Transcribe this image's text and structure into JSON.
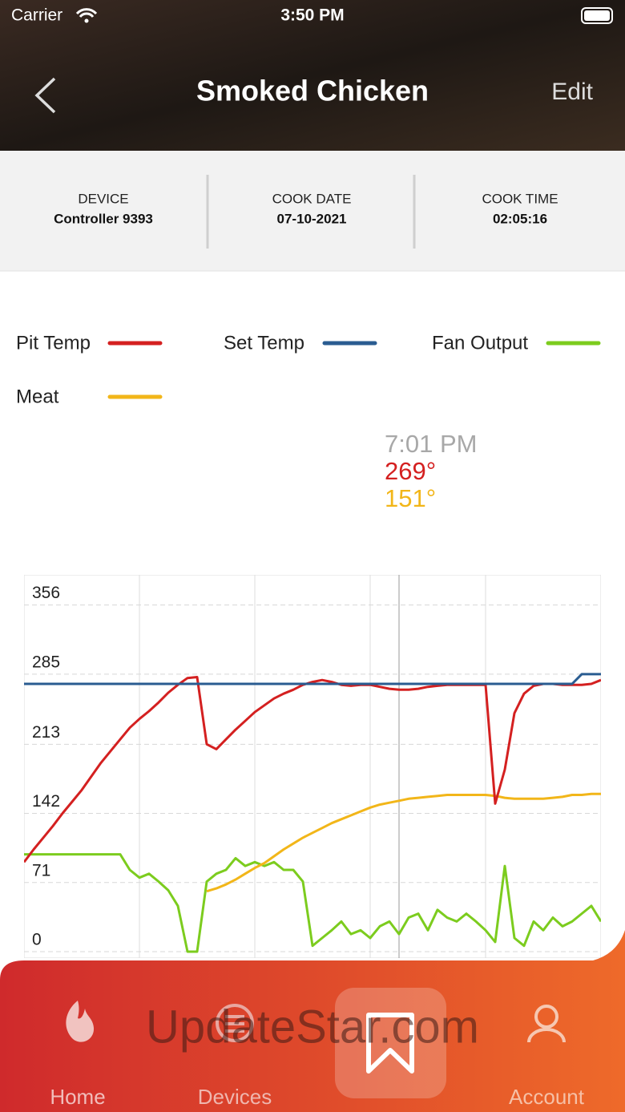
{
  "status_bar": {
    "carrier": "Carrier",
    "time": "3:50 PM"
  },
  "header": {
    "title": "Smoked Chicken",
    "action": "Edit"
  },
  "info": {
    "items": [
      {
        "label": "DEVICE",
        "value": "Controller 9393"
      },
      {
        "label": "COOK DATE",
        "value": "07-10-2021"
      },
      {
        "label": "COOK TIME",
        "value": "02:05:16"
      }
    ]
  },
  "tooltip": {
    "time": "7:01 PM",
    "pit": "269°",
    "meat": "151°"
  },
  "chart_data": {
    "type": "line",
    "categories": [
      null,
      null,
      null,
      null,
      null,
      null,
      null,
      null,
      null,
      null,
      null,
      null,
      null,
      null,
      null,
      null,
      null,
      null,
      null,
      null,
      null,
      null,
      null,
      null,
      null,
      null,
      null,
      null,
      null,
      null,
      null,
      null,
      null,
      null,
      null,
      null,
      null,
      null,
      null,
      null,
      null,
      null,
      null,
      null,
      null,
      null,
      null,
      null,
      null,
      null,
      null,
      null,
      null,
      null,
      null,
      null,
      null,
      null,
      null,
      null,
      null
    ],
    "ylim": [
      0,
      387
    ],
    "yticks": [
      0,
      71,
      142,
      213,
      285,
      356
    ],
    "grid": true,
    "series": [
      {
        "name": "Pit Temp",
        "color": "#d42020",
        "values": [
          92,
          105,
          117,
          129,
          142,
          154,
          166,
          180,
          194,
          206,
          218,
          230,
          239,
          247,
          256,
          266,
          274,
          281,
          282,
          213,
          208,
          218,
          228,
          237,
          246,
          253,
          260,
          265,
          269,
          274,
          277,
          279,
          277,
          274,
          273,
          274,
          274,
          272,
          270,
          269,
          269,
          270,
          272,
          273,
          274,
          274,
          274,
          274,
          274,
          152,
          187,
          245,
          265,
          273,
          275,
          275,
          274,
          274,
          274,
          275,
          279
        ]
      },
      {
        "name": "Set Temp",
        "color": "#2a5c91",
        "values": [
          275,
          275,
          275,
          275,
          275,
          275,
          275,
          275,
          275,
          275,
          275,
          275,
          275,
          275,
          275,
          275,
          275,
          275,
          275,
          275,
          275,
          275,
          275,
          275,
          275,
          275,
          275,
          275,
          275,
          275,
          275,
          275,
          275,
          275,
          275,
          275,
          275,
          275,
          275,
          275,
          275,
          275,
          275,
          275,
          275,
          275,
          275,
          275,
          275,
          275,
          275,
          275,
          275,
          275,
          275,
          275,
          275,
          275,
          285,
          285,
          285
        ]
      },
      {
        "name": "Fan Output",
        "color": "#7ccc1e",
        "values": [
          100,
          100,
          100,
          100,
          100,
          100,
          100,
          100,
          100,
          100,
          100,
          84,
          76,
          80,
          72,
          63,
          47,
          0,
          0,
          72,
          80,
          84,
          96,
          88,
          92,
          88,
          92,
          84,
          84,
          72,
          6,
          14,
          22,
          31,
          18,
          22,
          14,
          26,
          31,
          18,
          35,
          39,
          22,
          43,
          35,
          31,
          39,
          31,
          22,
          10,
          88,
          14,
          6,
          31,
          22,
          35,
          26,
          31,
          39,
          47,
          31
        ]
      },
      {
        "name": "Meat",
        "color": "#f2b619",
        "values": [
          null,
          null,
          null,
          null,
          null,
          null,
          null,
          null,
          null,
          null,
          null,
          null,
          null,
          null,
          null,
          null,
          null,
          null,
          null,
          62,
          65,
          69,
          74,
          80,
          86,
          91,
          98,
          105,
          111,
          117,
          122,
          127,
          132,
          136,
          140,
          144,
          148,
          151,
          153,
          155,
          157,
          158,
          159,
          160,
          161,
          161,
          161,
          161,
          161,
          160,
          158,
          157,
          157,
          157,
          157,
          158,
          159,
          161,
          161,
          162,
          162
        ]
      }
    ]
  },
  "tab_bar": {
    "items": [
      "Home",
      "Devices",
      "Account"
    ]
  },
  "watermark": "UpdateStar.com"
}
